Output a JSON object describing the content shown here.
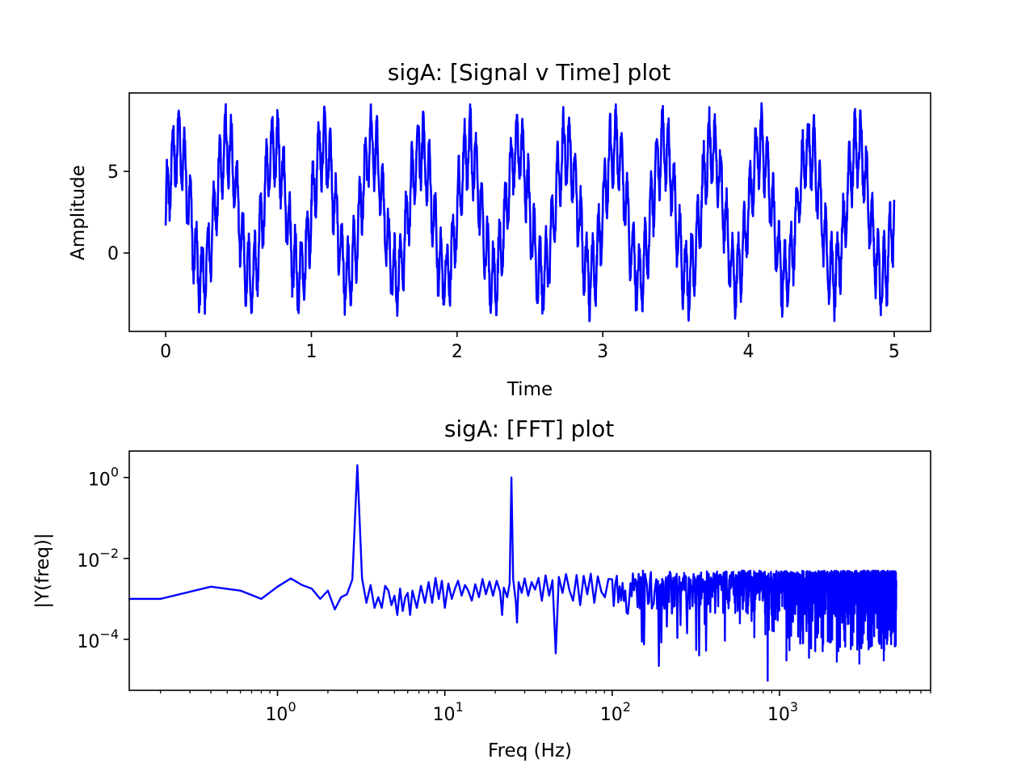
{
  "chart_data": [
    {
      "type": "line",
      "title": "sigA: [Signal v Time] plot",
      "xlabel": "Time",
      "ylabel": "Amplitude",
      "xlim": [
        -0.25,
        5.25
      ],
      "ylim": [
        -4.8,
        9.8
      ],
      "x_ticks": [
        0,
        1,
        2,
        3,
        4,
        5
      ],
      "y_ticks": [
        0,
        5
      ],
      "grid": false,
      "series_color": "#0000ff",
      "signal": {
        "t_start": 0,
        "t_end": 5,
        "offset": 2.5,
        "components": [
          {
            "amplitude_peak": 4.0,
            "frequency_hz": 3
          },
          {
            "amplitude_peak": 2.0,
            "frequency_hz": 25
          }
        ],
        "noise_peak": 0.8
      },
      "approx_peak_max": 9.2,
      "approx_trough_min": -4.0
    },
    {
      "type": "line",
      "title": "sigA: [FFT] plot",
      "xlabel": "Freq (Hz)",
      "ylabel": "|Y(freq)|",
      "xscale": "log",
      "yscale": "log",
      "xlim": [
        0.13,
        8000
      ],
      "ylim": [
        5.5e-06,
        4.5
      ],
      "x_ticks": [
        1,
        10,
        100,
        1000
      ],
      "x_tick_labels": [
        {
          "base": "10",
          "exp": "0"
        },
        {
          "base": "10",
          "exp": "1"
        },
        {
          "base": "10",
          "exp": "2"
        },
        {
          "base": "10",
          "exp": "3"
        }
      ],
      "y_ticks": [
        1,
        0.01,
        0.0001
      ],
      "y_tick_labels": [
        {
          "base": "10",
          "exp": "0"
        },
        {
          "base": "10",
          "exp": "−2"
        },
        {
          "base": "10",
          "exp": "−4"
        }
      ],
      "grid": false,
      "series_color": "#0000ff",
      "points": [
        [
          0.2,
          0.001
        ],
        [
          0.4,
          0.002
        ],
        [
          0.6,
          0.0016
        ],
        [
          0.8,
          0.001
        ],
        [
          1.0,
          0.002
        ],
        [
          1.2,
          0.0032
        ],
        [
          1.4,
          0.0022
        ],
        [
          1.6,
          0.0018
        ],
        [
          1.8,
          0.001
        ],
        [
          2.0,
          0.0016
        ],
        [
          2.2,
          0.00055
        ],
        [
          2.4,
          0.0011
        ],
        [
          2.6,
          0.0013
        ],
        [
          2.8,
          0.003
        ],
        [
          3.0,
          2.0
        ],
        [
          3.2,
          0.0032
        ],
        [
          3.4,
          0.0008
        ],
        [
          3.6,
          0.0022
        ],
        [
          3.8,
          0.0006
        ],
        [
          4.0,
          0.0011
        ],
        [
          4.2,
          0.0006
        ],
        [
          4.4,
          0.0021
        ],
        [
          4.6,
          0.0016
        ],
        [
          4.8,
          0.0007
        ],
        [
          5.0,
          0.0012
        ],
        [
          5.2,
          0.0004
        ],
        [
          5.4,
          0.0018
        ],
        [
          5.6,
          0.0005
        ],
        [
          5.8,
          0.0011
        ],
        [
          6.0,
          0.0014
        ],
        [
          6.2,
          0.0004
        ],
        [
          6.4,
          0.0016
        ],
        [
          6.8,
          0.0006
        ],
        [
          7.2,
          0.0021
        ],
        [
          7.6,
          0.0008
        ],
        [
          8.0,
          0.0026
        ],
        [
          8.4,
          0.0008
        ],
        [
          8.8,
          0.0033
        ],
        [
          9.2,
          0.001
        ],
        [
          9.6,
          0.0028
        ],
        [
          10.0,
          0.0006
        ],
        [
          10.5,
          0.0024
        ],
        [
          11.0,
          0.001
        ],
        [
          11.5,
          0.0018
        ],
        [
          12.0,
          0.0028
        ],
        [
          12.6,
          0.0012
        ],
        [
          13.2,
          0.0022
        ],
        [
          13.8,
          0.0016
        ],
        [
          14.5,
          0.0009
        ],
        [
          15.2,
          0.0023
        ],
        [
          16.0,
          0.0011
        ],
        [
          16.8,
          0.0031
        ],
        [
          17.6,
          0.0013
        ],
        [
          18.5,
          0.0027
        ],
        [
          19.4,
          0.0012
        ],
        [
          20.4,
          0.0028
        ],
        [
          21.4,
          0.0015
        ],
        [
          22.0,
          0.0004
        ],
        [
          22.5,
          0.0019
        ],
        [
          23.6,
          0.0011
        ],
        [
          24.4,
          0.0024
        ],
        [
          25.0,
          1.0
        ],
        [
          25.6,
          0.0031
        ],
        [
          26.6,
          0.0008
        ],
        [
          27.0,
          0.00026
        ],
        [
          27.6,
          0.0026
        ],
        [
          28.8,
          0.0014
        ],
        [
          30.0,
          0.0032
        ],
        [
          31.5,
          0.0012
        ],
        [
          33.0,
          0.0026
        ],
        [
          34.6,
          0.0017
        ],
        [
          36.3,
          0.0033
        ],
        [
          38.0,
          0.0009
        ],
        [
          40.0,
          0.0038
        ],
        [
          42.0,
          0.0012
        ],
        [
          44.0,
          0.0029
        ],
        [
          46.0,
          4.5e-05
        ],
        [
          48.0,
          0.0035
        ],
        [
          50.5,
          0.0014
        ],
        [
          53.0,
          0.0041
        ],
        [
          55.6,
          0.0016
        ],
        [
          58.4,
          0.0009
        ],
        [
          61.3,
          0.0039
        ],
        [
          64.4,
          0.0007
        ],
        [
          67.6,
          0.0037
        ],
        [
          71.0,
          0.0013
        ],
        [
          74.5,
          0.0042
        ],
        [
          78.2,
          0.0008
        ],
        [
          82.1,
          0.0036
        ],
        [
          86.2,
          0.0015
        ],
        [
          90.5,
          0.0011
        ],
        [
          95.0,
          0.0031
        ]
      ],
      "noise_band": {
        "f_min": 100,
        "f_max": 4990,
        "floor_min": 0.0004,
        "floor_max": 0.005,
        "dips": [
          [
            190,
            2.2e-05
          ],
          [
            330,
            4e-05
          ],
          [
            850,
            9.5e-06
          ],
          [
            1100,
            3e-05
          ],
          [
            1500,
            3.5e-05
          ],
          [
            2200,
            2.8e-05
          ],
          [
            3000,
            2.5e-05
          ],
          [
            4200,
            3e-05
          ]
        ]
      }
    }
  ]
}
